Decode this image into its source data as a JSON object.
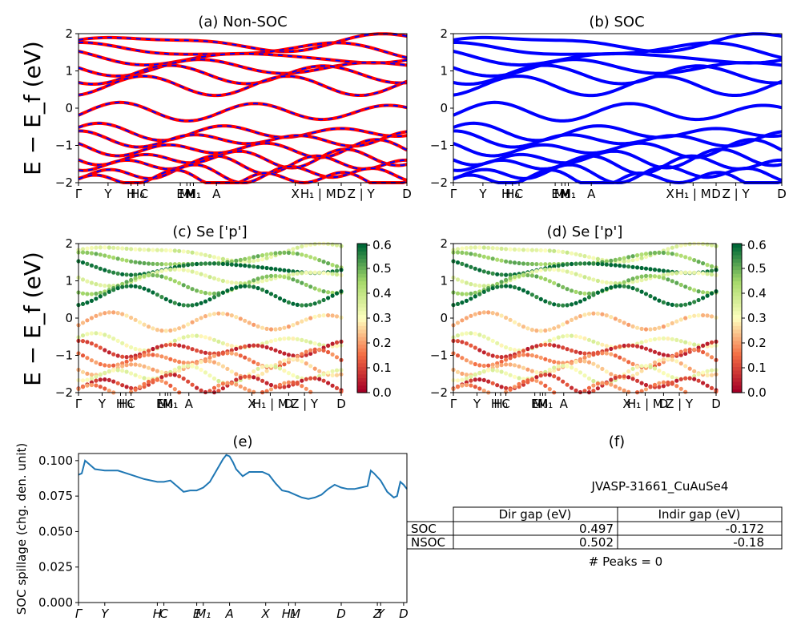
{
  "chart_data": [
    {
      "id": "a",
      "type": "line",
      "title": "(a) Non-SOC",
      "ylabel": "E − E_f (eV)",
      "ylim": [
        -2,
        2
      ],
      "yticks": [
        "−2",
        "−1",
        "0",
        "1",
        "2"
      ],
      "kpath_labels": [
        "Γ",
        "Y",
        "H",
        "H₀",
        "C",
        "E",
        "M₀",
        "M",
        "M₁",
        "A",
        "X",
        "H₁ | M",
        "D",
        "Z | Y",
        "D"
      ],
      "kpath_pos": [
        0,
        0.09,
        0.16,
        0.18,
        0.2,
        0.31,
        0.33,
        0.34,
        0.35,
        0.42,
        0.66,
        0.73,
        0.8,
        0.86,
        1.0
      ],
      "colors": {
        "band_primary": "#ff0000",
        "band_dash": "#0000ff"
      }
    },
    {
      "id": "b",
      "type": "line",
      "title": "(b) SOC",
      "ylim": [
        -2,
        2
      ],
      "yticks": [
        "−2",
        "−1",
        "0",
        "1",
        "2"
      ],
      "kpath_labels": [
        "Γ",
        "Y",
        "H",
        "H₀",
        "C",
        "E",
        "M₀",
        "M",
        "M₁",
        "A",
        "X",
        "H₁ | M",
        "D",
        "Z | Y",
        "D"
      ],
      "colors": {
        "band": "#0000ff"
      }
    },
    {
      "id": "c",
      "type": "scatter",
      "title": "(c)  Se ['p']",
      "ylabel": "E − E_f (eV)",
      "ylim": [
        -2,
        2
      ],
      "yticks": [
        "−2",
        "−1",
        "0",
        "1",
        "2"
      ],
      "kpath_labels": [
        "Γ",
        "Y",
        "H",
        "H₀",
        "C",
        "E",
        "M₀",
        "M",
        "M₁",
        "A",
        "X",
        "H₁ | M",
        "D",
        "Z | Y",
        "D"
      ],
      "colorbar": {
        "min": 0.0,
        "max": 0.6,
        "ticks": [
          "0.0",
          "0.1",
          "0.2",
          "0.3",
          "0.4",
          "0.5",
          "0.6"
        ],
        "cmap": "RdYlGn"
      }
    },
    {
      "id": "d",
      "type": "scatter",
      "title": "(d) Se ['p']",
      "ylim": [
        -2,
        2
      ],
      "yticks": [
        "−2",
        "−1",
        "0",
        "1",
        "2"
      ],
      "kpath_labels": [
        "Γ",
        "Y",
        "H",
        "H₀",
        "C",
        "E",
        "M₀",
        "M",
        "M₁",
        "A",
        "X",
        "H₁ | M",
        "D",
        "Z | Y",
        "D"
      ],
      "colorbar": {
        "min": 0.0,
        "max": 0.6,
        "ticks": [
          "0.0",
          "0.1",
          "0.2",
          "0.3",
          "0.4",
          "0.5",
          "0.6"
        ],
        "cmap": "RdYlGn"
      }
    },
    {
      "id": "e",
      "type": "line",
      "title": "(e)",
      "ylabel": "SOC spillage (chg. den. unit)",
      "ylim": [
        0,
        0.105
      ],
      "yticks": [
        "0.000",
        "0.025",
        "0.050",
        "0.075",
        "0.100"
      ],
      "kpath_labels": [
        "Γ",
        "Y",
        "H",
        "C",
        "E",
        "M₁",
        "A",
        "X",
        "H₁",
        "M",
        "D",
        "Z",
        "Y",
        "D"
      ],
      "kpath_pos": [
        0,
        0.08,
        0.24,
        0.26,
        0.36,
        0.38,
        0.46,
        0.57,
        0.64,
        0.66,
        0.8,
        0.91,
        0.92,
        0.99
      ],
      "x": [
        0,
        0.01,
        0.02,
        0.03,
        0.05,
        0.08,
        0.12,
        0.16,
        0.2,
        0.24,
        0.26,
        0.28,
        0.3,
        0.32,
        0.34,
        0.36,
        0.38,
        0.4,
        0.42,
        0.44,
        0.45,
        0.46,
        0.47,
        0.48,
        0.5,
        0.52,
        0.54,
        0.56,
        0.58,
        0.6,
        0.62,
        0.64,
        0.66,
        0.68,
        0.7,
        0.72,
        0.74,
        0.76,
        0.78,
        0.8,
        0.82,
        0.84,
        0.86,
        0.88,
        0.89,
        0.9,
        0.92,
        0.94,
        0.96,
        0.97,
        0.98,
        0.99,
        1.0
      ],
      "y": [
        0.09,
        0.091,
        0.1,
        0.098,
        0.094,
        0.093,
        0.093,
        0.09,
        0.087,
        0.085,
        0.085,
        0.086,
        0.082,
        0.078,
        0.079,
        0.079,
        0.081,
        0.085,
        0.093,
        0.101,
        0.104,
        0.103,
        0.099,
        0.094,
        0.089,
        0.092,
        0.092,
        0.092,
        0.09,
        0.084,
        0.079,
        0.078,
        0.076,
        0.074,
        0.073,
        0.074,
        0.076,
        0.08,
        0.083,
        0.081,
        0.08,
        0.08,
        0.081,
        0.082,
        0.093,
        0.091,
        0.086,
        0.078,
        0.074,
        0.075,
        0.085,
        0.083,
        0.08
      ],
      "colors": {
        "line": "#1f77b4"
      }
    }
  ],
  "panel_f": {
    "title": "(f)",
    "material": "JVASP-31661_CuAuSe4",
    "headers": [
      "Dir gap (eV)",
      "Indir gap (eV)"
    ],
    "rows": [
      {
        "label": "SOC",
        "dir": "0.497",
        "indir": "-0.172"
      },
      {
        "label": "NSOC",
        "dir": "0.502",
        "indir": "-0.18"
      }
    ],
    "peaks": "# Peaks = 0"
  }
}
